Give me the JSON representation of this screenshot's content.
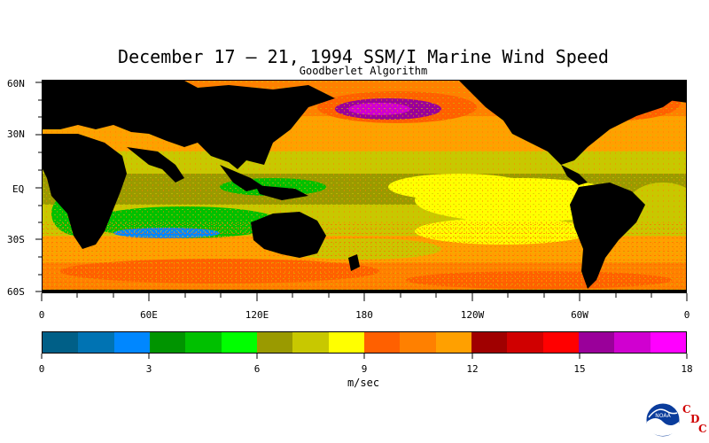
{
  "title": "December 17 – 21, 1994 SSM/I Marine Wind Speed",
  "subtitle": "Goodberlet Algorithm",
  "lat_labels": [
    "60N",
    "30N",
    "EQ",
    "30S",
    "60S"
  ],
  "lon_labels": [
    "0",
    "60E",
    "120E",
    "180",
    "120W",
    "60W",
    "0"
  ],
  "colorbar": {
    "tick_labels": [
      "0",
      "3",
      "6",
      "9",
      "12",
      "15",
      "18"
    ],
    "units": "m/sec",
    "colors": [
      "#005f87",
      "#0073b3",
      "#0087ff",
      "#009400",
      "#00c000",
      "#00ff00",
      "#9a9a00",
      "#c8c800",
      "#ffff00",
      "#ff6000",
      "#ff8000",
      "#ffa000",
      "#a00000",
      "#d00000",
      "#ff0000",
      "#9a009a",
      "#d000d0",
      "#ff00ff"
    ]
  },
  "logo": {
    "noaa_text": "NOAA",
    "cdc_letters": [
      "C",
      "D",
      "C"
    ]
  }
}
